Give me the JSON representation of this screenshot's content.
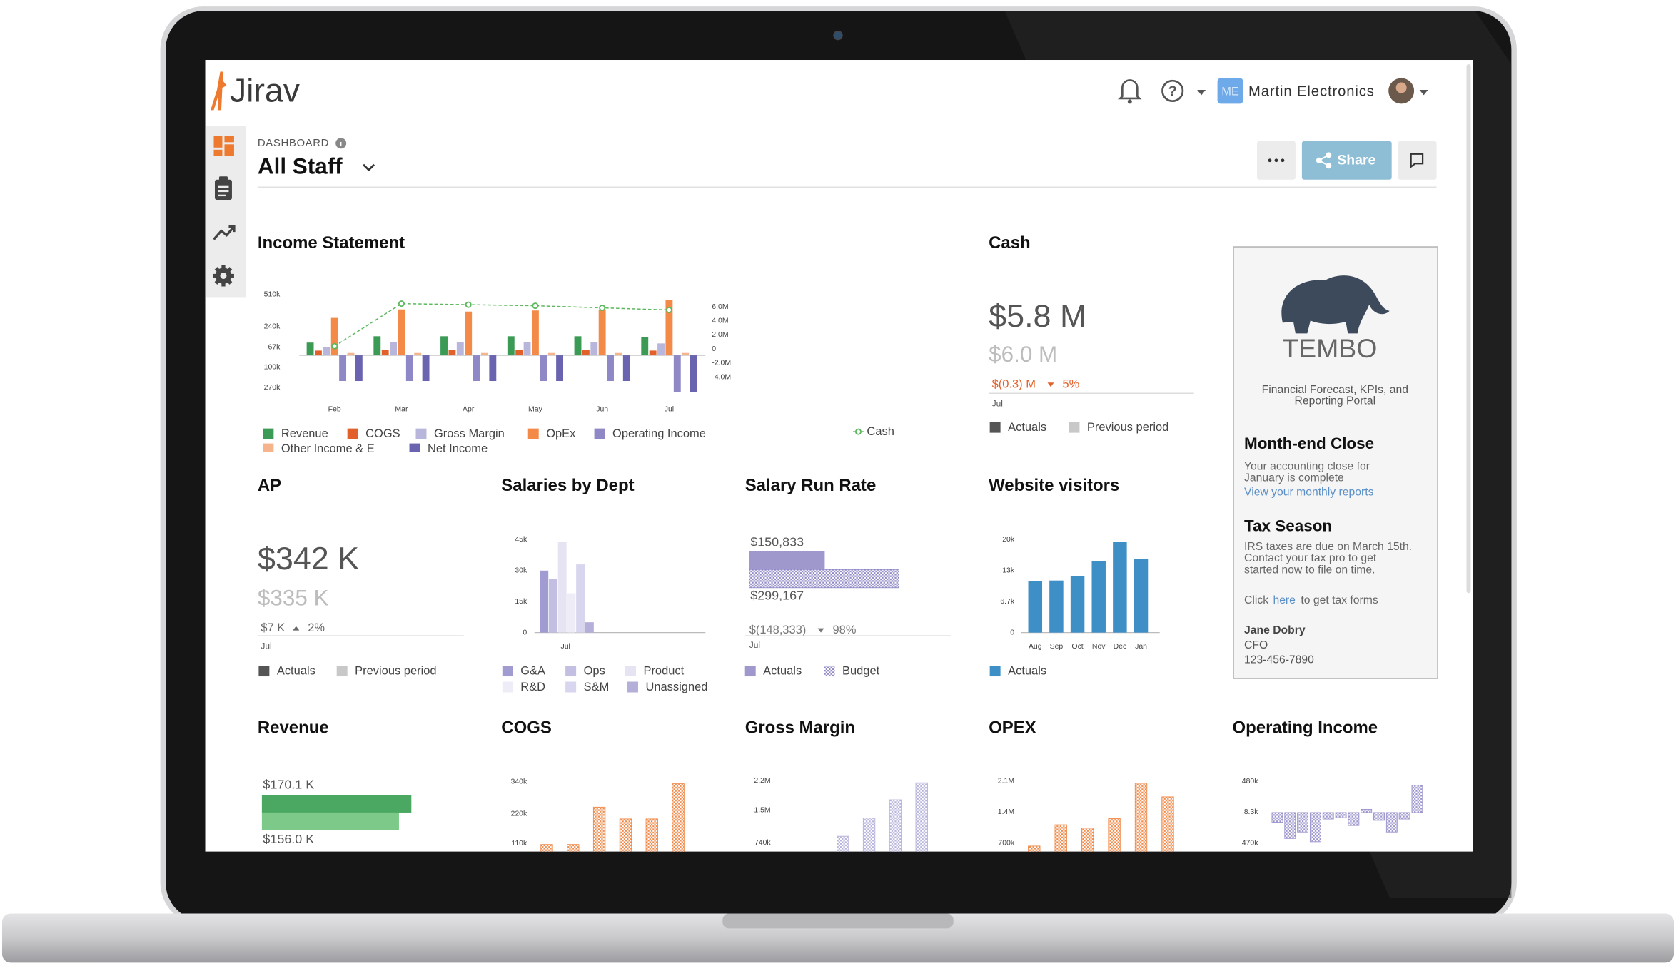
{
  "header": {
    "logo": "Jirav",
    "org_badge": "ME",
    "org_name": "Martin Electronics"
  },
  "dashboard": {
    "label": "DASHBOARD",
    "name": "All Staff",
    "share": "Share"
  },
  "income_statement": {
    "title": "Income Statement",
    "type": "bar",
    "categories": [
      "Feb",
      "Mar",
      "Apr",
      "May",
      "Jun",
      "Jul"
    ],
    "ylim": [
      -300000,
      560000
    ],
    "yticks": [
      {
        "value": 510000,
        "label": "510k"
      },
      {
        "value": 240000,
        "label": "240k"
      },
      {
        "value": 67000,
        "label": "67k"
      },
      {
        "value": -100000,
        "label": "100k"
      },
      {
        "value": -270000,
        "label": "270k"
      }
    ],
    "y2lim": [
      -6000000,
      8600000
    ],
    "y2ticks": [
      {
        "value": 6000000,
        "label": "6.0M"
      },
      {
        "value": 4000000,
        "label": "4.0M"
      },
      {
        "value": 2000000,
        "label": "2.0M"
      },
      0,
      {
        "value": -2000000,
        "label": "-2.0M"
      },
      {
        "value": -4000000,
        "label": "-4.0M"
      }
    ],
    "series": [
      {
        "name": "Revenue",
        "color": "#3b9b55",
        "values": [
          107000,
          160000,
          160000,
          160000,
          160000,
          150000
        ]
      },
      {
        "name": "COGS",
        "color": "#e2612b",
        "values": [
          40000,
          45000,
          45000,
          45000,
          45000,
          40000
        ]
      },
      {
        "name": "Gross Margin",
        "color": "#b9b6dc",
        "values": [
          70000,
          110000,
          110000,
          110000,
          110000,
          100000
        ]
      },
      {
        "name": "OpEx",
        "color": "#f48a48",
        "values": [
          314000,
          385000,
          367000,
          376000,
          385000,
          466000
        ]
      },
      {
        "name": "Operating Income",
        "color": "#8e88c6",
        "values": [
          -215000,
          -215000,
          -215000,
          -215000,
          -215000,
          -305000
        ]
      },
      {
        "name": "Other Income & E",
        "color": "#f6b48c",
        "values": [
          20000,
          20000,
          20000,
          20000,
          20000,
          20000
        ]
      },
      {
        "name": "Net Income",
        "color": "#6a63b0",
        "values": [
          -215000,
          -215000,
          -215000,
          -215000,
          -215000,
          -305000
        ]
      },
      {
        "name": "Cash",
        "color": "#5cb85c",
        "axis": "y2",
        "type": "line",
        "values": [
          400000,
          6450000,
          6300000,
          6150000,
          5850000,
          5550000
        ]
      }
    ]
  },
  "cash": {
    "title": "Cash",
    "actual": "$5.8 M",
    "previous": "$6.0 M",
    "change": "$(0.3) M",
    "change_pct": "5%",
    "period": "Jul",
    "legend": [
      {
        "name": "Actuals",
        "color": "#555555"
      },
      {
        "name": "Previous period",
        "color": "#c8c8c8"
      }
    ]
  },
  "ap": {
    "title": "AP",
    "actual": "$342 K",
    "previous": "$335 K",
    "change": "$7 K",
    "change_pct": "2%",
    "period": "Jul",
    "legend": [
      {
        "name": "Actuals",
        "color": "#555555"
      },
      {
        "name": "Previous period",
        "color": "#c8c8c8"
      }
    ]
  },
  "salaries_by_dept": {
    "title": "Salaries by Dept",
    "type": "bar",
    "categories": [
      "Jul"
    ],
    "ylim": [
      0,
      45000
    ],
    "yticks": [
      {
        "value": 45000,
        "label": "45k"
      },
      {
        "value": 30000,
        "label": "30k"
      },
      {
        "value": 15000,
        "label": "15k"
      },
      0
    ],
    "series": [
      {
        "name": "G&A",
        "color": "#a09bd0",
        "values": [
          30000
        ]
      },
      {
        "name": "Ops",
        "color": "#c2bfe3",
        "values": [
          26000
        ]
      },
      {
        "name": "Product",
        "color": "#e6e4f3",
        "values": [
          44000
        ]
      },
      {
        "name": "R&D",
        "color": "#eeedf7",
        "values": [
          19000
        ]
      },
      {
        "name": "S&M",
        "color": "#d8d6ee",
        "values": [
          33000
        ]
      },
      {
        "name": "Unassigned",
        "color": "#b3afd9",
        "values": [
          5000
        ]
      }
    ]
  },
  "salary_run_rate": {
    "title": "Salary Run Rate",
    "type": "hbar",
    "xlim": [
      0,
      300000
    ],
    "series": [
      {
        "name": "Actuals",
        "color": "#9e98cd",
        "values": [
          150833
        ],
        "value_labels": [
          "$150,833"
        ]
      },
      {
        "name": "Budget",
        "color": "#8e88c6",
        "hatch": true,
        "values": [
          299167
        ],
        "value_labels": [
          "$299,167"
        ]
      }
    ],
    "change": "$(148,333)",
    "change_pct": "98%",
    "period": "Jul"
  },
  "website_visitors": {
    "title": "Website visitors",
    "type": "bar",
    "categories": [
      "Aug",
      "Sep",
      "Oct",
      "Nov",
      "Dec",
      "Jan"
    ],
    "ylim": [
      0,
      20000
    ],
    "yticks": [
      {
        "value": 20000,
        "label": "20k"
      },
      {
        "value": 13333,
        "label": "13k"
      },
      {
        "value": 6667,
        "label": "6.7k"
      },
      0
    ],
    "series": [
      {
        "name": "Actuals",
        "color": "#3d8fc6",
        "values": [
          11000,
          11200,
          12200,
          15400,
          19500,
          15900
        ]
      }
    ]
  },
  "tembo": {
    "logo": "TEMBO",
    "subtitle": [
      "Financial Forecast, KPIs, and",
      "Reporting Portal"
    ],
    "month_end": {
      "title": "Month-end Close",
      "body": [
        "Your accounting close for",
        "January is complete"
      ],
      "link": "View your monthly reports"
    },
    "tax": {
      "title": "Tax Season",
      "body": [
        "IRS taxes are due on March 15th.",
        "Contact your tax pro to get",
        "started now to file on time."
      ],
      "click_pre": "Click",
      "click_link": "here",
      "click_post": "to get tax forms"
    },
    "contact": {
      "name": "Jane Dobry",
      "role": "CFO",
      "phone": "123-456-7890"
    }
  },
  "revenue": {
    "title": "Revenue",
    "type": "hbar",
    "xlim": [
      0,
      180000
    ],
    "series": [
      {
        "color": "#4aa862",
        "values": [
          170100
        ],
        "value_labels": [
          "$170.1 K"
        ]
      },
      {
        "color": "#7cc98a",
        "values": [
          156000
        ],
        "value_labels": [
          "$156.0 K"
        ]
      }
    ]
  },
  "cogs": {
    "title": "COGS",
    "type": "bar",
    "ylim": [
      0,
      360000
    ],
    "yticks": [
      {
        "value": 340000,
        "label": "340k"
      },
      {
        "value": 220000,
        "label": "220k"
      },
      {
        "value": 110000,
        "label": "110k"
      }
    ],
    "series": [
      {
        "color": "#f08a4b",
        "hatch": true,
        "values": [
          106000,
          106000,
          245000,
          201000,
          201000,
          332000
        ]
      }
    ]
  },
  "gross_margin": {
    "title": "Gross Margin",
    "type": "bar",
    "ylim": [
      0,
      2300000
    ],
    "yticks": [
      {
        "value": 2200000,
        "label": "2.2M"
      },
      {
        "value": 1500000,
        "label": "1.5M"
      },
      {
        "value": 740000,
        "label": "740k"
      }
    ],
    "series": [
      {
        "color": "#b5b2dc",
        "hatch": true,
        "values": [
          890000,
          1320000,
          1750000,
          2150000
        ]
      }
    ]
  },
  "opex": {
    "title": "OPEX",
    "type": "bar",
    "ylim": [
      0,
      2200000
    ],
    "yticks": [
      {
        "value": 2100000,
        "label": "2.1M"
      },
      {
        "value": 1400000,
        "label": "1.4M"
      },
      {
        "value": 700000,
        "label": "700k"
      }
    ],
    "series": [
      {
        "color": "#f08a4b",
        "hatch": true,
        "values": [
          630000,
          1110000,
          1040000,
          1250000,
          2050000,
          1740000
        ]
      }
    ]
  },
  "operating_income": {
    "title": "Operating Income",
    "type": "bar",
    "ylim": [
      -560000,
      560000
    ],
    "yticks": [
      {
        "value": 480000,
        "label": "480k"
      },
      {
        "value": 8300,
        "label": "8.3k"
      },
      {
        "value": -470000,
        "label": "-470k"
      }
    ],
    "series": [
      {
        "color": "#9a94cc",
        "hatch": true,
        "values": [
          -150000,
          -400000,
          -300000,
          -450000,
          -100000,
          -80000,
          -200000,
          50000,
          -120000,
          -300000,
          -100000,
          420000
        ]
      }
    ]
  }
}
